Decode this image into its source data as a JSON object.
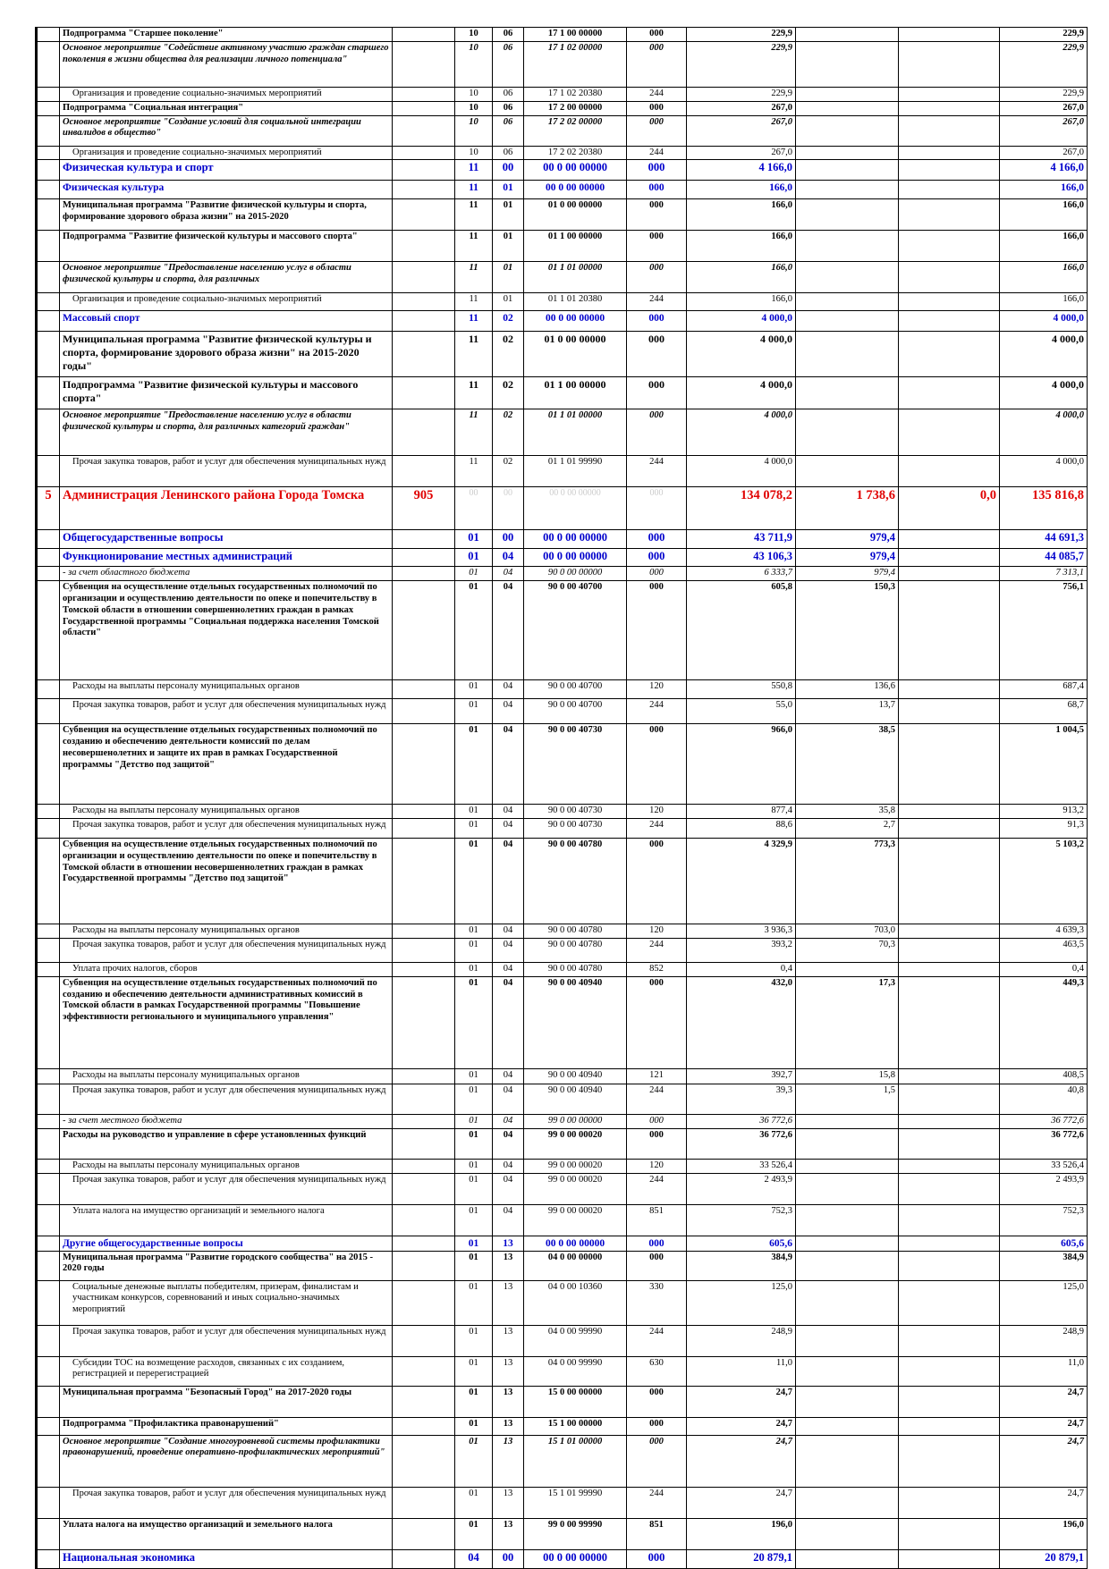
{
  "rows": [
    [
      null,
      "Подпрограмма \"Старшее поколение\"",
      null,
      "10",
      "06",
      "17 1 00 00000",
      "000",
      "229,9",
      null,
      null,
      "229,9"
    ],
    [
      null,
      "Основное мероприятие \"Содействие активному участию граждан старшего поколения в жизни общества для реализации личного потенциала\"",
      null,
      "10",
      "06",
      "17 1 02 00000",
      "000",
      "229,9",
      null,
      null,
      "229,9"
    ],
    [
      null,
      "Организация и проведение социально-значимых мероприятий",
      null,
      "10",
      "06",
      "17 1 02 20380",
      "244",
      "229,9",
      null,
      null,
      "229,9"
    ],
    [
      null,
      "Подпрограмма \"Социальная интеграция\"",
      null,
      "10",
      "06",
      "17 2 00 00000",
      "000",
      "267,0",
      null,
      null,
      "267,0"
    ],
    [
      null,
      "Основное мероприятие \"Создание условий для социальной интеграции инвалидов в общество\"",
      null,
      "10",
      "06",
      "17 2 02 00000",
      "000",
      "267,0",
      null,
      null,
      "267,0"
    ],
    [
      null,
      "Организация и проведение социально-значимых мероприятий",
      null,
      "10",
      "06",
      "17 2 02 20380",
      "244",
      "267,0",
      null,
      null,
      "267,0"
    ],
    [
      null,
      "Физическая культура и спорт",
      null,
      "11",
      "00",
      "00 0 00 00000",
      "000",
      "4 166,0",
      null,
      null,
      "4 166,0"
    ],
    [
      null,
      "Физическая культура",
      null,
      "11",
      "01",
      "00 0 00 00000",
      "000",
      "166,0",
      null,
      null,
      "166,0"
    ],
    [
      null,
      "Муниципальная программа \"Развитие физической культуры и спорта, формирование здорового образа жизни\" на 2015-2020",
      null,
      "11",
      "01",
      "01 0 00 00000",
      "000",
      "166,0",
      null,
      null,
      "166,0"
    ],
    [
      null,
      "Подпрограмма \"Развитие физической культуры и массового спорта\"",
      null,
      "11",
      "01",
      "01 1 00 00000",
      "000",
      "166,0",
      null,
      null,
      "166,0"
    ],
    [
      null,
      "Основное мероприятие \"Предоставление населению услуг в области физической культуры и спорта, для различных",
      null,
      "11",
      "01",
      "01 1 01 00000",
      "000",
      "166,0",
      null,
      null,
      "166,0"
    ],
    [
      null,
      "Организация и проведение социально-значимых мероприятий",
      null,
      "11",
      "01",
      "01 1 01 20380",
      "244",
      "166,0",
      null,
      null,
      "166,0"
    ],
    [
      null,
      "Массовый спорт",
      null,
      "11",
      "02",
      "00 0 00 00000",
      "000",
      "4 000,0",
      null,
      null,
      "4 000,0"
    ],
    [
      null,
      "Муниципальная программа \"Развитие физической культуры и спорта, формирование здорового образа жизни\" на 2015-2020 годы\"",
      null,
      "11",
      "02",
      "01 0 00 00000",
      "000",
      "4 000,0",
      null,
      null,
      "4 000,0"
    ],
    [
      null,
      "Подпрограмма \"Развитие физической культуры и массового спорта\"",
      null,
      "11",
      "02",
      "01 1 00 00000",
      "000",
      "4 000,0",
      null,
      null,
      "4 000,0"
    ],
    [
      null,
      "Основное мероприятие \"Предоставление населению услуг в области физической культуры и спорта, для различных категорий граждан\"",
      null,
      "11",
      "02",
      "01 1 01 00000",
      "000",
      "4 000,0",
      null,
      null,
      "4 000,0"
    ],
    [
      null,
      "Прочая закупка товаров, работ и услуг для обеспечения муниципальных нужд",
      null,
      "11",
      "02",
      "01 1 01 99990",
      "244",
      "4 000,0",
      null,
      null,
      "4 000,0"
    ],
    [
      "5",
      "Администрация Ленинского района Города Томска",
      "905",
      "00",
      "00",
      "00 0 00 00000",
      "000",
      "134 078,2",
      "1 738,6",
      "0,0",
      "135 816,8"
    ],
    [
      null,
      "Общегосударственные вопросы",
      null,
      "01",
      "00",
      "00 0 00 00000",
      "000",
      "43 711,9",
      "979,4",
      null,
      "44 691,3"
    ],
    [
      null,
      "Функционирование местных администраций",
      null,
      "01",
      "04",
      "00 0 00 00000",
      "000",
      "43 106,3",
      "979,4",
      null,
      "44 085,7"
    ],
    [
      null,
      "- за счет областного бюджета",
      null,
      "01",
      "04",
      "90 0 00 00000",
      "000",
      "6 333,7",
      "979,4",
      null,
      "7 313,1"
    ],
    [
      null,
      "Субвенция на осуществление отдельных государственных полномочий по организации и осуществлению деятельности по опеке и попечительству в Томской области в отношении совершеннолетних граждан в рамках Государственной программы \"Социальная поддержка населения Томской области\"",
      null,
      "01",
      "04",
      "90 0 00 40700",
      "000",
      "605,8",
      "150,3",
      null,
      "756,1"
    ],
    [
      null,
      "Расходы на выплаты персоналу муниципальных органов",
      null,
      "01",
      "04",
      "90 0 00 40700",
      "120",
      "550,8",
      "136,6",
      null,
      "687,4"
    ],
    [
      null,
      "Прочая закупка товаров, работ и услуг для обеспечения муниципальных нужд",
      null,
      "01",
      "04",
      "90 0 00 40700",
      "244",
      "55,0",
      "13,7",
      null,
      "68,7"
    ],
    [
      null,
      "Субвенция на осуществление отдельных государственных полномочий по созданию и обеспечению деятельности комиссий по делам несовершенолетних и защите их прав в рамках Государственной программы \"Детство под защитой\"",
      null,
      "01",
      "04",
      "90 0 00 40730",
      "000",
      "966,0",
      "38,5",
      null,
      "1 004,5"
    ],
    [
      null,
      "Расходы на выплаты персоналу муниципальных органов",
      null,
      "01",
      "04",
      "90 0 00 40730",
      "120",
      "877,4",
      "35,8",
      null,
      "913,2"
    ],
    [
      null,
      "Прочая закупка товаров, работ и услуг для обеспечения муниципальных нужд",
      null,
      "01",
      "04",
      "90 0 00 40730",
      "244",
      "88,6",
      "2,7",
      null,
      "91,3"
    ],
    [
      null,
      "Субвенция на осуществление отдельных государственных полномочий по организации и осуществлению деятельности по опеке и попечительству в Томской области в отношении несовершеннолетних граждан в рамках Государственной программы \"Детство под защитой\"",
      null,
      "01",
      "04",
      "90 0 00 40780",
      "000",
      "4 329,9",
      "773,3",
      null,
      "5 103,2"
    ],
    [
      null,
      "Расходы на выплаты персоналу муниципальных органов",
      null,
      "01",
      "04",
      "90 0 00 40780",
      "120",
      "3 936,3",
      "703,0",
      null,
      "4 639,3"
    ],
    [
      null,
      "Прочая закупка товаров, работ и услуг для обеспечения муниципальных нужд",
      null,
      "01",
      "04",
      "90 0 00 40780",
      "244",
      "393,2",
      "70,3",
      null,
      "463,5"
    ],
    [
      null,
      "Уплата прочих налогов, сборов",
      null,
      "01",
      "04",
      "90 0 00 40780",
      "852",
      "0,4",
      null,
      null,
      "0,4"
    ],
    [
      null,
      "Субвенция на осуществление отдельных государственных полномочий по созданию и обеспечению деятельности административных комиссий в Томской области в рамках Государственной программы \"Повышение эффективности регионального и муниципального управления\"",
      null,
      "01",
      "04",
      "90 0 00 40940",
      "000",
      "432,0",
      "17,3",
      null,
      "449,3"
    ],
    [
      null,
      "Расходы на выплаты персоналу муниципальных органов",
      null,
      "01",
      "04",
      "90 0 00 40940",
      "121",
      "392,7",
      "15,8",
      null,
      "408,5"
    ],
    [
      null,
      "Прочая закупка товаров, работ и услуг для обеспечения муниципальных нужд",
      null,
      "01",
      "04",
      "90 0 00 40940",
      "244",
      "39,3",
      "1,5",
      null,
      "40,8"
    ],
    [
      null,
      "- за счет местного бюджета",
      null,
      "01",
      "04",
      "99 0 00 00000",
      "000",
      "36 772,6",
      null,
      null,
      "36 772,6"
    ],
    [
      null,
      "Расходы на руководство и управление в сфере установленных функций",
      null,
      "01",
      "04",
      "99 0 00 00020",
      "000",
      "36 772,6",
      null,
      null,
      "36 772,6"
    ],
    [
      null,
      "Расходы на выплаты персоналу муниципальных органов",
      null,
      "01",
      "04",
      "99 0 00 00020",
      "120",
      "33 526,4",
      null,
      null,
      "33 526,4"
    ],
    [
      null,
      "Прочая закупка товаров, работ и услуг для обеспечения муниципальных нужд",
      null,
      "01",
      "04",
      "99 0 00 00020",
      "244",
      "2 493,9",
      null,
      null,
      "2 493,9"
    ],
    [
      null,
      "Уплата налога на имущество организаций и земельного налога",
      null,
      "01",
      "04",
      "99 0 00 00020",
      "851",
      "752,3",
      null,
      null,
      "752,3"
    ],
    [
      null,
      "Другие общегосударственные вопросы",
      null,
      "01",
      "13",
      "00 0 00 00000",
      "000",
      "605,6",
      null,
      null,
      "605,6"
    ],
    [
      null,
      "Муниципальная программа \"Развитие городского сообщества\" на 2015 - 2020 годы",
      null,
      "01",
      "13",
      "04 0 00 00000",
      "000",
      "384,9",
      null,
      null,
      "384,9"
    ],
    [
      null,
      "Социальные денежные выплаты победителям, призерам, финалистам и участникам конкурсов, соревнований и иных социально-значимых мероприятий",
      null,
      "01",
      "13",
      "04 0 00 10360",
      "330",
      "125,0",
      null,
      null,
      "125,0"
    ],
    [
      null,
      "Прочая закупка товаров, работ и услуг для обеспечения муниципальных нужд",
      null,
      "01",
      "13",
      "04 0 00 99990",
      "244",
      "248,9",
      null,
      null,
      "248,9"
    ],
    [
      null,
      "Субсидии ТОС на возмещение расходов, связанных с их созданием, регистрацией и перерегистрацией",
      null,
      "01",
      "13",
      "04 0 00 99990",
      "630",
      "11,0",
      null,
      null,
      "11,0"
    ],
    [
      null,
      "Муниципальная программа \"Безопасный Город\" на 2017-2020 годы",
      null,
      "01",
      "13",
      "15 0 00 00000",
      "000",
      "24,7",
      null,
      null,
      "24,7"
    ],
    [
      null,
      "Подпрограмма \"Профилактика правонарушений\"",
      null,
      "01",
      "13",
      "15 1 00 00000",
      "000",
      "24,7",
      null,
      null,
      "24,7"
    ],
    [
      null,
      "Основное мероприятие \"Создание многоуровневой системы профилактики правонарушений, проведение оперативно-профилактических мероприятий\"",
      null,
      "01",
      "13",
      "15 1 01 00000",
      "000",
      "24,7",
      null,
      null,
      "24,7"
    ],
    [
      null,
      "Прочая закупка товаров, работ и услуг для обеспечения муниципальных нужд",
      null,
      "01",
      "13",
      "15 1 01 99990",
      "244",
      "24,7",
      null,
      null,
      "24,7"
    ],
    [
      null,
      "Уплата налога на имущество организаций и земельного налога",
      null,
      "01",
      "13",
      "99 0 00 99990",
      "851",
      "196,0",
      null,
      null,
      "196,0"
    ],
    [
      null,
      "Национальная экономика",
      null,
      "04",
      "00",
      "00 0 00 00000",
      "000",
      "20 879,1",
      null,
      null,
      "20 879,1"
    ]
  ]
}
